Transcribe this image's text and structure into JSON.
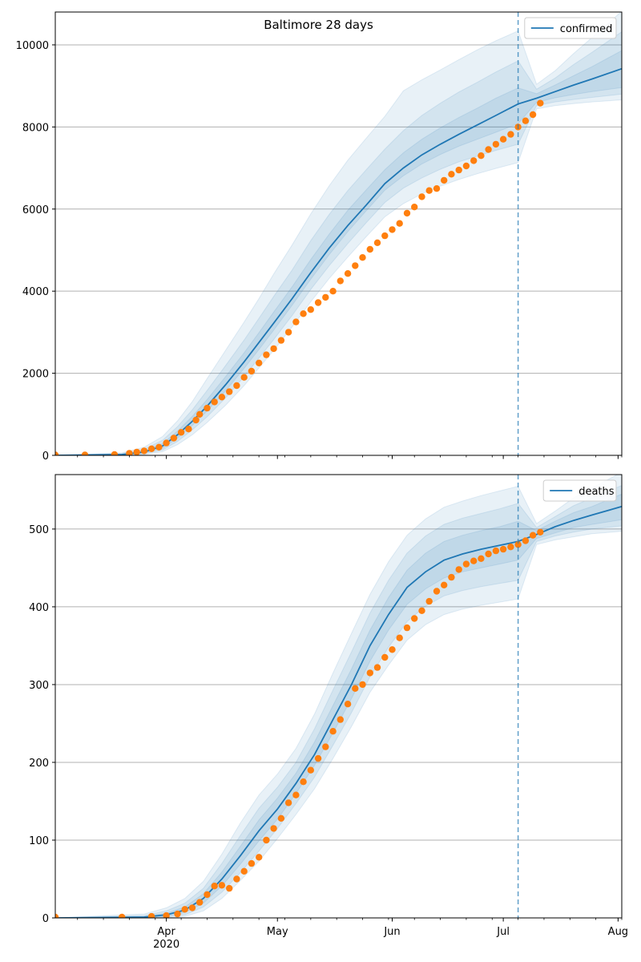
{
  "chart_data": [
    {
      "type": "line",
      "title": "Baltimore 28 days",
      "xlabel": "",
      "ylabel": "",
      "ylim": [
        0,
        10800
      ],
      "yticks": [
        0,
        2000,
        4000,
        6000,
        8000,
        10000
      ],
      "xlim": [
        "2020-03-02",
        "2020-08-02"
      ],
      "forecast_start": "2020-07-05",
      "legend": {
        "label": "confirmed",
        "placement": "top-right"
      },
      "grid": "horizontal",
      "colors": {
        "model": "#1f77b4",
        "observed": "#ff7f0e",
        "band": "#1f77b4"
      },
      "model": {
        "name": "confirmed",
        "dates": [
          "2020-03-02",
          "2020-03-20",
          "2020-03-26",
          "2020-03-31",
          "2020-04-04",
          "2020-04-08",
          "2020-04-12",
          "2020-04-17",
          "2020-04-22",
          "2020-04-26",
          "2020-04-30",
          "2020-05-05",
          "2020-05-10",
          "2020-05-15",
          "2020-05-20",
          "2020-05-25",
          "2020-05-30",
          "2020-06-04",
          "2020-06-09",
          "2020-06-14",
          "2020-06-19",
          "2020-06-24",
          "2020-06-29",
          "2020-07-05",
          "2020-07-10",
          "2020-07-15",
          "2020-07-20",
          "2020-07-25",
          "2020-08-02"
        ],
        "median": [
          0,
          20,
          80,
          230,
          500,
          830,
          1200,
          1720,
          2280,
          2750,
          3220,
          3820,
          4450,
          5050,
          5600,
          6100,
          6620,
          7000,
          7320,
          7580,
          7820,
          8050,
          8280,
          8560,
          8700,
          8860,
          9020,
          9170,
          9420
        ],
        "band1_low": [
          0,
          10,
          60,
          180,
          420,
          730,
          1080,
          1570,
          2120,
          2580,
          3050,
          3660,
          4290,
          4890,
          5450,
          5960,
          6460,
          6810,
          7100,
          7330,
          7530,
          7700,
          7870,
          8080,
          8600,
          8710,
          8790,
          8860,
          8960
        ],
        "band1_high": [
          0,
          30,
          110,
          290,
          590,
          950,
          1360,
          1920,
          2500,
          2990,
          3490,
          4110,
          4770,
          5390,
          5970,
          6470,
          6960,
          7370,
          7700,
          7980,
          8230,
          8460,
          8700,
          8950,
          8810,
          9020,
          9250,
          9470,
          9860
        ],
        "band2_low": [
          0,
          5,
          40,
          130,
          340,
          620,
          940,
          1400,
          1920,
          2370,
          2820,
          3410,
          4040,
          4620,
          5160,
          5670,
          6160,
          6510,
          6760,
          6970,
          7150,
          7290,
          7430,
          7580,
          8520,
          8610,
          8670,
          8720,
          8800
        ],
        "band2_high": [
          0,
          45,
          150,
          370,
          700,
          1110,
          1580,
          2190,
          2810,
          3340,
          3870,
          4520,
          5230,
          5870,
          6450,
          6960,
          7460,
          7910,
          8280,
          8580,
          8850,
          9090,
          9340,
          9610,
          8920,
          9190,
          9520,
          9820,
          10320
        ],
        "band3_low": [
          0,
          0,
          20,
          90,
          260,
          500,
          800,
          1220,
          1700,
          2130,
          2560,
          3130,
          3740,
          4310,
          4830,
          5330,
          5810,
          6130,
          6370,
          6560,
          6720,
          6860,
          6990,
          7130,
          8440,
          8520,
          8570,
          8610,
          8660
        ],
        "band3_high": [
          0,
          60,
          200,
          460,
          840,
          1310,
          1870,
          2560,
          3250,
          3820,
          4420,
          5130,
          5880,
          6570,
          7190,
          7730,
          8260,
          8880,
          9150,
          9390,
          9640,
          9880,
          10100,
          10340,
          9040,
          9370,
          9790,
          10180,
          10820
        ]
      },
      "observed": {
        "name": "observed confirmed",
        "dates": [
          "2020-03-02",
          "2020-03-10",
          "2020-03-18",
          "2020-03-22",
          "2020-03-24",
          "2020-03-26",
          "2020-03-28",
          "2020-03-30",
          "2020-04-01",
          "2020-04-03",
          "2020-04-05",
          "2020-04-07",
          "2020-04-09",
          "2020-04-10",
          "2020-04-12",
          "2020-04-14",
          "2020-04-16",
          "2020-04-18",
          "2020-04-20",
          "2020-04-22",
          "2020-04-24",
          "2020-04-26",
          "2020-04-28",
          "2020-04-30",
          "2020-05-02",
          "2020-05-04",
          "2020-05-06",
          "2020-05-08",
          "2020-05-10",
          "2020-05-12",
          "2020-05-14",
          "2020-05-16",
          "2020-05-18",
          "2020-05-20",
          "2020-05-22",
          "2020-05-24",
          "2020-05-26",
          "2020-05-28",
          "2020-05-30",
          "2020-06-01",
          "2020-06-03",
          "2020-06-05",
          "2020-06-07",
          "2020-06-09",
          "2020-06-11",
          "2020-06-13",
          "2020-06-15",
          "2020-06-17",
          "2020-06-19",
          "2020-06-21",
          "2020-06-23",
          "2020-06-25",
          "2020-06-27",
          "2020-06-29",
          "2020-07-01",
          "2020-07-03",
          "2020-07-05",
          "2020-07-07",
          "2020-07-09",
          "2020-07-11"
        ],
        "values": [
          10,
          10,
          20,
          50,
          80,
          110,
          160,
          200,
          300,
          420,
          560,
          640,
          860,
          1000,
          1150,
          1300,
          1420,
          1550,
          1700,
          1900,
          2050,
          2250,
          2450,
          2600,
          2800,
          3000,
          3250,
          3450,
          3550,
          3720,
          3850,
          4000,
          4250,
          4430,
          4620,
          4820,
          5020,
          5180,
          5350,
          5500,
          5650,
          5900,
          6050,
          6300,
          6450,
          6500,
          6700,
          6850,
          6950,
          7050,
          7180,
          7300,
          7450,
          7580,
          7700,
          7820,
          8000,
          8150,
          8300,
          8580
        ]
      }
    },
    {
      "type": "line",
      "title": "",
      "xlabel": "",
      "ylabel": "",
      "ylim": [
        0,
        570
      ],
      "yticks": [
        0,
        100,
        200,
        300,
        400,
        500
      ],
      "xlim": [
        "2020-03-02",
        "2020-08-02"
      ],
      "forecast_start": "2020-07-05",
      "legend": {
        "label": "deaths",
        "placement": "top-right"
      },
      "grid": "horizontal",
      "colors": {
        "model": "#1f77b4",
        "observed": "#ff7f0e",
        "band": "#1f77b4"
      },
      "x_tick_labels": [
        {
          "date": "2020-04-01",
          "label": "Apr",
          "sublabel": "2020"
        },
        {
          "date": "2020-05-01",
          "label": "May",
          "sublabel": ""
        },
        {
          "date": "2020-06-01",
          "label": "Jun",
          "sublabel": ""
        },
        {
          "date": "2020-07-01",
          "label": "Jul",
          "sublabel": ""
        },
        {
          "date": "2020-08-01",
          "label": "Aug",
          "sublabel": ""
        }
      ],
      "model": {
        "name": "deaths",
        "dates": [
          "2020-03-02",
          "2020-03-26",
          "2020-04-01",
          "2020-04-06",
          "2020-04-11",
          "2020-04-16",
          "2020-04-21",
          "2020-04-26",
          "2020-05-01",
          "2020-05-06",
          "2020-05-11",
          "2020-05-16",
          "2020-05-21",
          "2020-05-26",
          "2020-05-31",
          "2020-06-05",
          "2020-06-10",
          "2020-06-15",
          "2020-06-20",
          "2020-06-25",
          "2020-06-30",
          "2020-07-05",
          "2020-07-10",
          "2020-07-15",
          "2020-07-20",
          "2020-07-25",
          "2020-08-02"
        ],
        "median": [
          0,
          1,
          4,
          10,
          25,
          50,
          80,
          112,
          140,
          173,
          210,
          255,
          300,
          350,
          390,
          425,
          445,
          460,
          468,
          474,
          479,
          484,
          493,
          503,
          511,
          518,
          529
        ],
        "band1_low": [
          0,
          0,
          2,
          7,
          19,
          41,
          69,
          99,
          127,
          160,
          196,
          238,
          282,
          330,
          370,
          403,
          423,
          437,
          445,
          450,
          455,
          460,
          488,
          495,
          502,
          506,
          512
        ],
        "band1_high": [
          0,
          2,
          6,
          14,
          31,
          59,
          92,
          126,
          154,
          186,
          226,
          273,
          320,
          370,
          412,
          447,
          469,
          484,
          492,
          498,
          503,
          510,
          498,
          510,
          521,
          529,
          545
        ],
        "band2_low": [
          0,
          0,
          1,
          4,
          14,
          33,
          58,
          86,
          115,
          147,
          181,
          222,
          264,
          310,
          348,
          381,
          401,
          414,
          421,
          426,
          430,
          434,
          484,
          491,
          496,
          500,
          504
        ],
        "band2_high": [
          0,
          3,
          9,
          19,
          38,
          70,
          106,
          141,
          168,
          200,
          243,
          293,
          342,
          392,
          434,
          469,
          491,
          506,
          514,
          520,
          526,
          533,
          502,
          516,
          530,
          540,
          556
        ],
        "band3_low": [
          0,
          0,
          0,
          2,
          9,
          25,
          48,
          73,
          102,
          133,
          166,
          205,
          246,
          290,
          325,
          357,
          377,
          390,
          397,
          402,
          406,
          410,
          480,
          486,
          490,
          494,
          497
        ],
        "band3_high": [
          0,
          5,
          13,
          25,
          47,
          82,
          122,
          158,
          185,
          218,
          262,
          315,
          366,
          416,
          458,
          492,
          513,
          528,
          536,
          543,
          549,
          555,
          507,
          523,
          540,
          553,
          573
        ]
      },
      "observed": {
        "name": "observed deaths",
        "dates": [
          "2020-03-02",
          "2020-03-20",
          "2020-03-28",
          "2020-04-01",
          "2020-04-04",
          "2020-04-06",
          "2020-04-08",
          "2020-04-10",
          "2020-04-12",
          "2020-04-14",
          "2020-04-16",
          "2020-04-18",
          "2020-04-20",
          "2020-04-22",
          "2020-04-24",
          "2020-04-26",
          "2020-04-28",
          "2020-04-30",
          "2020-05-02",
          "2020-05-04",
          "2020-05-06",
          "2020-05-08",
          "2020-05-10",
          "2020-05-12",
          "2020-05-14",
          "2020-05-16",
          "2020-05-18",
          "2020-05-20",
          "2020-05-22",
          "2020-05-24",
          "2020-05-26",
          "2020-05-28",
          "2020-05-30",
          "2020-06-01",
          "2020-06-03",
          "2020-06-05",
          "2020-06-07",
          "2020-06-09",
          "2020-06-11",
          "2020-06-13",
          "2020-06-15",
          "2020-06-17",
          "2020-06-19",
          "2020-06-21",
          "2020-06-23",
          "2020-06-25",
          "2020-06-27",
          "2020-06-29",
          "2020-07-01",
          "2020-07-03",
          "2020-07-05",
          "2020-07-07",
          "2020-07-09",
          "2020-07-11"
        ],
        "values": [
          1,
          1,
          2,
          3,
          5,
          11,
          13,
          20,
          30,
          41,
          42,
          38,
          50,
          60,
          70,
          78,
          100,
          115,
          128,
          148,
          158,
          175,
          190,
          205,
          220,
          240,
          255,
          275,
          295,
          300,
          315,
          322,
          335,
          345,
          360,
          373,
          385,
          395,
          407,
          420,
          428,
          438,
          448,
          455,
          459,
          462,
          468,
          472,
          474,
          477,
          480,
          485,
          492,
          496
        ]
      }
    }
  ]
}
